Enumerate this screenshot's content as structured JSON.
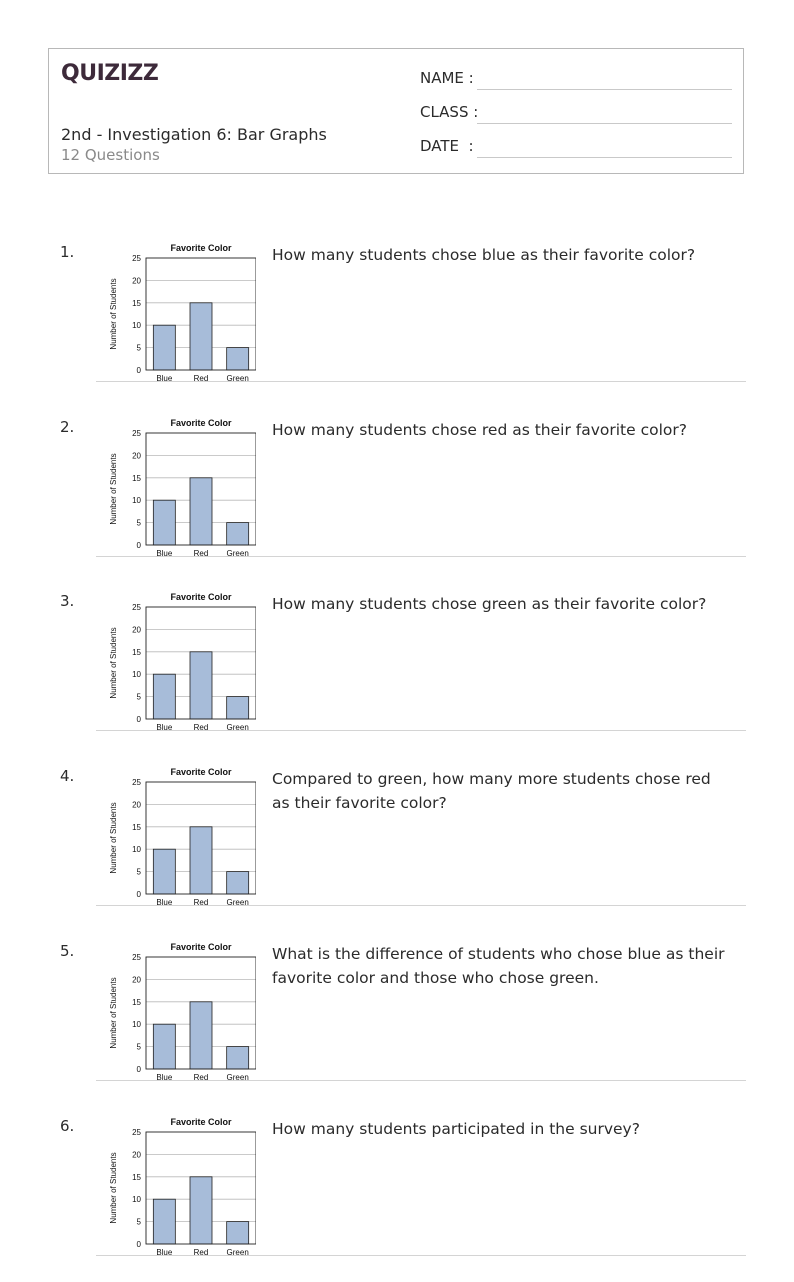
{
  "header": {
    "logo": "QUIZIZZ",
    "title": "2nd - Investigation 6: Bar Graphs",
    "subtitle": "12 Questions",
    "fields": [
      "NAME :",
      "CLASS :",
      "DATE  :"
    ]
  },
  "chart_data": {
    "type": "bar",
    "title": "Favorite Color",
    "ylabel": "Number of Students",
    "xlabel": "",
    "categories": [
      "Blue",
      "Red",
      "Green"
    ],
    "values": [
      10,
      15,
      5
    ],
    "ylim": [
      0,
      25
    ],
    "yticks": [
      "0",
      "5",
      "10",
      "15",
      "20",
      "25"
    ],
    "grid": true,
    "bar_color": "#a7bcd9"
  },
  "questions": [
    {
      "number": "1.",
      "text": "How many students chose blue as their favorite color?"
    },
    {
      "number": "2.",
      "text": "How many students chose red as their favorite color?"
    },
    {
      "number": "3.",
      "text": "How many students chose green as their favorite color?"
    },
    {
      "number": "4.",
      "text": "Compared to green, how many more students chose red as their favorite color?"
    },
    {
      "number": "5.",
      "text": "What is the difference of students who chose blue as their favorite color and those who chose green."
    },
    {
      "number": "6.",
      "text": "How many students participated in the survey?"
    }
  ]
}
